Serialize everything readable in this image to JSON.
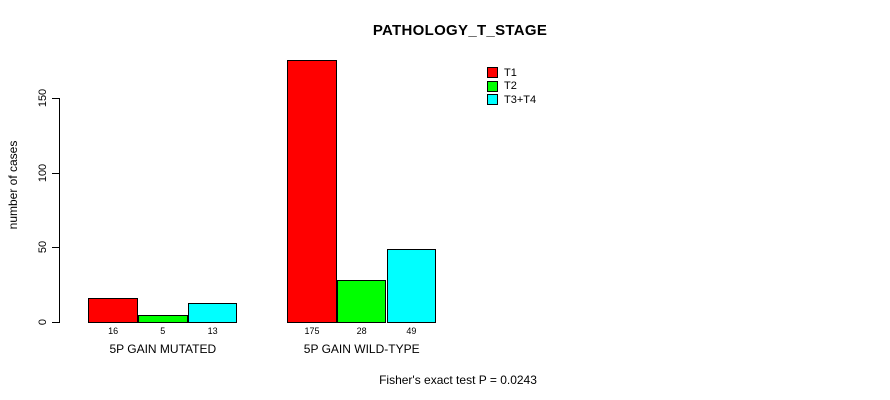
{
  "chart_data": {
    "type": "bar",
    "title": "PATHOLOGY_T_STAGE",
    "categories": [
      "5P GAIN MUTATED",
      "5P GAIN WILD-TYPE"
    ],
    "series": [
      {
        "name": "T1",
        "color": "#ff0000",
        "values": [
          16,
          175
        ]
      },
      {
        "name": "T2",
        "color": "#00ff00",
        "values": [
          5,
          28
        ]
      },
      {
        "name": "T3+T4",
        "color": "#00ffff",
        "values": [
          13,
          49
        ]
      }
    ],
    "xlabel": "",
    "ylabel": "number of cases",
    "ylim": [
      0,
      175
    ],
    "yticks": [
      0,
      50,
      100,
      150
    ],
    "grid": false,
    "bar_value_labels_shown": true,
    "legend_position": "top-right",
    "bar_border_color": "#000000",
    "annotation": "Fisher's exact test P = 0.0243"
  }
}
